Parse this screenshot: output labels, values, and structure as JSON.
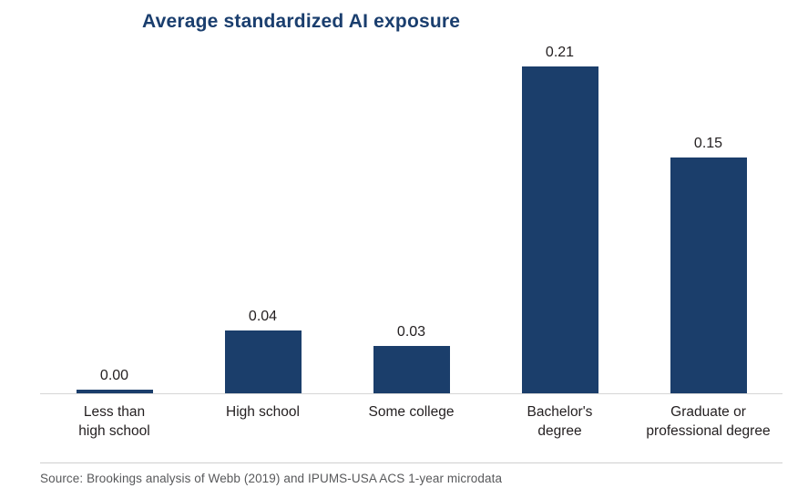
{
  "chart_data": {
    "type": "bar",
    "title": "Average standardized AI exposure",
    "categories": [
      "Less than\nhigh school",
      "High school",
      "Some college",
      "Bachelor's\ndegree",
      "Graduate or\nprofessional degree"
    ],
    "values": [
      0.0,
      0.04,
      0.03,
      0.21,
      0.15
    ],
    "value_labels": [
      "0.00",
      "0.04",
      "0.03",
      "0.21",
      "0.15"
    ],
    "xlabel": "",
    "ylabel": "",
    "ylim": [
      0,
      0.22
    ],
    "grid": false,
    "legend": "none",
    "colors": {
      "bar": "#1b3e6b",
      "title": "#1a3e6e",
      "axis_line": "#d6d6d6"
    }
  },
  "footer": {
    "source": "Source: Brookings analysis of Webb (2019) and IPUMS-USA ACS 1-year microdata"
  }
}
